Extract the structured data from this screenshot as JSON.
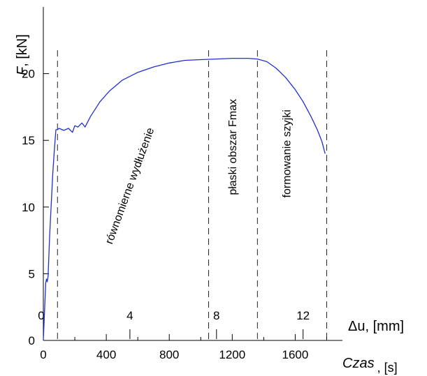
{
  "chart_data": {
    "type": "line",
    "ylabel_symbol": "F",
    "ylabel_unit": ", [kN]",
    "xlabel_symbol": "Czas",
    "xlabel_unit": ", [s]",
    "x2label_symbol": "Δu",
    "x2label_unit": ", [mm]",
    "xlim": [
      0,
      1900
    ],
    "ylim": [
      0,
      25
    ],
    "x_ticks": [
      0,
      400,
      800,
      1200,
      1600
    ],
    "x_minor_ticks": [
      200,
      600,
      1000,
      1400,
      1800
    ],
    "y_ticks": [
      0,
      5,
      10,
      15,
      20
    ],
    "x2_ticks": [
      {
        "label": "0",
        "time": 0
      },
      {
        "label": "4",
        "time": 550
      },
      {
        "label": "8",
        "time": 1100
      },
      {
        "label": "12",
        "time": 1650
      }
    ],
    "phase_boundaries_time": [
      90,
      1050,
      1360,
      1800
    ],
    "phase_labels": [
      {
        "text": "równomierne wydłużenie",
        "time": 570,
        "force": 11.5
      },
      {
        "text": "płaski obszar Fmax",
        "time": 1225,
        "force": 14.5
      },
      {
        "text": "formowanie szyjki",
        "time": 1570,
        "force": 14.0
      }
    ],
    "series": [
      {
        "color": "#1f2fd6",
        "x": [
          0,
          15,
          20,
          25,
          30,
          40,
          50,
          60,
          70,
          80,
          90,
          100,
          130,
          160,
          185,
          200,
          220,
          245,
          265,
          300,
          360,
          420,
          500,
          600,
          700,
          800,
          900,
          1000,
          1100,
          1200,
          1300,
          1360,
          1420,
          1480,
          1540,
          1600,
          1650,
          1700,
          1740,
          1770,
          1790
        ],
        "y": [
          0,
          4.3,
          4.6,
          4.4,
          4.8,
          7.8,
          10.2,
          12.5,
          14.3,
          15.8,
          15.8,
          15.9,
          15.75,
          15.9,
          15.6,
          16.1,
          16.0,
          16.3,
          16.0,
          16.8,
          17.9,
          18.7,
          19.5,
          20.1,
          20.5,
          20.8,
          21.0,
          21.05,
          21.1,
          21.15,
          21.15,
          21.1,
          20.9,
          20.4,
          19.7,
          18.8,
          17.9,
          16.8,
          15.8,
          14.9,
          14.0
        ]
      }
    ]
  }
}
